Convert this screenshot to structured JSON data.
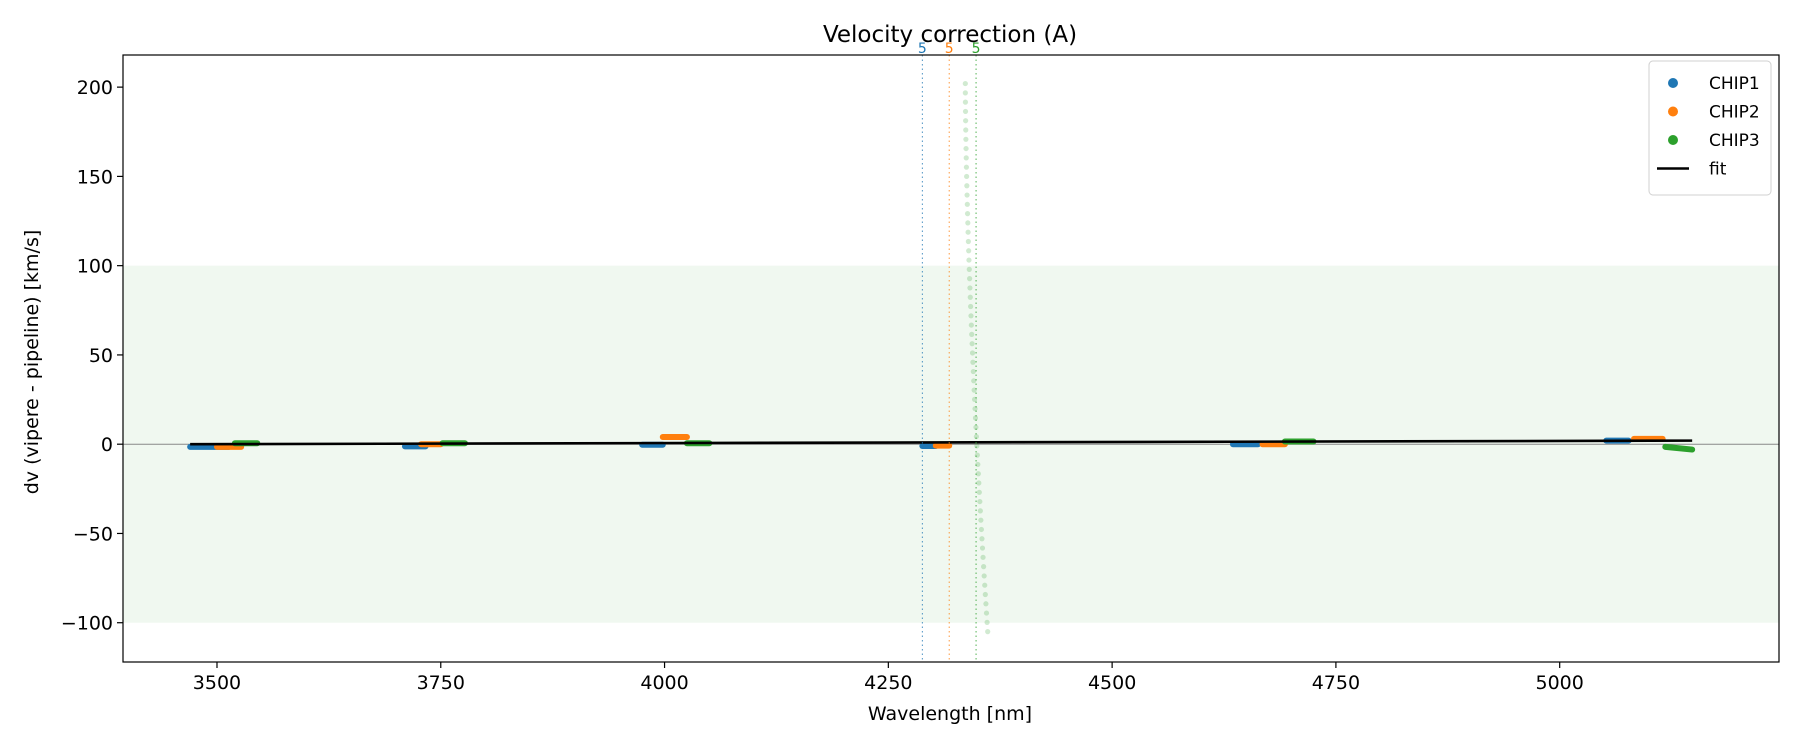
{
  "chart_data": {
    "type": "scatter",
    "title": "Velocity correction (A)",
    "xlabel": "Wavelength [nm]",
    "ylabel": "dv (vipere - pipeline) [km/s]",
    "xlim": [
      3395,
      5245
    ],
    "ylim": [
      -122,
      218
    ],
    "xticks": [
      3500,
      3750,
      4000,
      4250,
      4500,
      4750,
      5000
    ],
    "yticks": [
      -100,
      -50,
      0,
      50,
      100,
      150,
      200
    ],
    "band": {
      "y0": -100,
      "y1": 100,
      "color": "#2ca02c"
    },
    "zero_line": 0,
    "legend": {
      "position": "top-right",
      "entries": [
        "CHIP1",
        "CHIP2",
        "CHIP3",
        "fit"
      ]
    },
    "colors": {
      "CHIP1": "#1f77b4",
      "CHIP2": "#ff7f0e",
      "CHIP3": "#2ca02c",
      "fit": "#000000"
    },
    "series": [
      {
        "name": "CHIP1",
        "segments": [
          {
            "x0": 3470,
            "x1": 3513,
            "y0": -1.5,
            "y1": -1.5
          },
          {
            "x0": 3710,
            "x1": 3733,
            "y0": -1.2,
            "y1": -1.2
          },
          {
            "x0": 3975,
            "x1": 3998,
            "y0": -0.3,
            "y1": -0.3
          },
          {
            "x0": 4288,
            "x1": 4303,
            "y0": -1.0,
            "y1": -1.0
          },
          {
            "x0": 4635,
            "x1": 4663,
            "y0": 0.0,
            "y1": 0.0
          },
          {
            "x0": 5052,
            "x1": 5077,
            "y0": 2.0,
            "y1": 2.0
          }
        ]
      },
      {
        "name": "CHIP2",
        "segments": [
          {
            "x0": 3500,
            "x1": 3527,
            "y0": -1.5,
            "y1": -1.5
          },
          {
            "x0": 3728,
            "x1": 3750,
            "y0": 0.0,
            "y1": 0.0
          },
          {
            "x0": 3998,
            "x1": 4025,
            "y0": 4.0,
            "y1": 4.0
          },
          {
            "x0": 4303,
            "x1": 4318,
            "y0": -0.8,
            "y1": -0.8
          },
          {
            "x0": 4668,
            "x1": 4693,
            "y0": 0.0,
            "y1": 0.0
          },
          {
            "x0": 5083,
            "x1": 5115,
            "y0": 3.0,
            "y1": 3.0
          }
        ]
      },
      {
        "name": "CHIP3",
        "segments": [
          {
            "x0": 3520,
            "x1": 3545,
            "y0": 0.5,
            "y1": 0.5
          },
          {
            "x0": 3752,
            "x1": 3777,
            "y0": 0.5,
            "y1": 0.5
          },
          {
            "x0": 4025,
            "x1": 4050,
            "y0": 0.5,
            "y1": 0.5
          },
          {
            "x0": 4693,
            "x1": 4725,
            "y0": 1.5,
            "y1": 1.5
          },
          {
            "x0": 5118,
            "x1": 5148,
            "y0": -1.5,
            "y1": -3.0
          }
        ]
      }
    ],
    "outliers": {
      "series": "CHIP3",
      "x0": 4336,
      "x1": 4361,
      "y0": 202,
      "y1": -105,
      "count": 60
    },
    "fit": {
      "x": [
        3470,
        5148
      ],
      "y": [
        0.0,
        2.0
      ]
    },
    "markers": [
      {
        "x": 4288,
        "label": "5",
        "series": "CHIP1"
      },
      {
        "x": 4318,
        "label": "5",
        "series": "CHIP2"
      },
      {
        "x": 4348,
        "label": "5",
        "series": "CHIP3"
      }
    ]
  }
}
